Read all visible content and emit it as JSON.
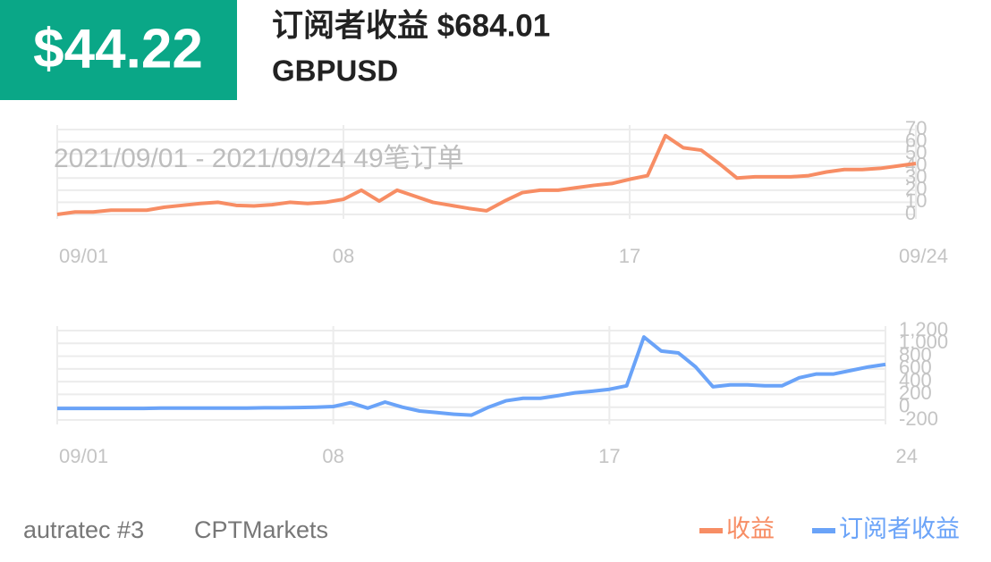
{
  "header": {
    "amount": "$44.22",
    "title": "订阅者收益 $684.01",
    "symbol": "GBPUSD"
  },
  "chart_data": [
    {
      "type": "line",
      "annotation": "2021/09/01 - 2021/09/24  49笔订单",
      "categories": [
        "09/01",
        null,
        null,
        null,
        null,
        null,
        null,
        null,
        null,
        null,
        null,
        null,
        null,
        null,
        null,
        null,
        "08",
        null,
        null,
        null,
        null,
        null,
        null,
        null,
        null,
        null,
        null,
        null,
        null,
        null,
        null,
        null,
        "17",
        null,
        null,
        null,
        null,
        null,
        null,
        null,
        null,
        null,
        null,
        null,
        null,
        null,
        null,
        null,
        "09/24"
      ],
      "series": [
        {
          "name": "收益",
          "color": "#f78d64",
          "values": [
            0,
            2,
            2,
            3.5,
            3.5,
            3.5,
            6,
            7.5,
            9,
            10,
            7.5,
            7,
            8,
            10,
            9,
            10,
            12.5,
            20,
            11,
            20,
            15,
            10,
            7.5,
            5,
            3,
            11,
            18,
            20,
            20,
            22,
            24,
            25.5,
            29,
            32,
            65,
            55,
            53,
            42,
            30,
            31,
            31,
            31,
            32,
            35,
            37,
            37,
            38,
            40,
            42
          ]
        }
      ],
      "ylim": [
        0,
        70
      ],
      "yticks": [
        0,
        10,
        20,
        30,
        40,
        50,
        60,
        70
      ],
      "grid": true
    },
    {
      "type": "line",
      "categories": [
        "09/01",
        null,
        null,
        null,
        null,
        null,
        null,
        null,
        null,
        null,
        null,
        null,
        null,
        null,
        null,
        null,
        "08",
        null,
        null,
        null,
        null,
        null,
        null,
        null,
        null,
        null,
        null,
        null,
        null,
        null,
        null,
        null,
        "17",
        null,
        null,
        null,
        null,
        null,
        null,
        null,
        null,
        null,
        null,
        null,
        null,
        null,
        null,
        null,
        "24"
      ],
      "series": [
        {
          "name": "订阅者收益",
          "color": "#6aa3f8",
          "values": [
            -20,
            -20,
            -20,
            -20,
            -20,
            -20,
            -15,
            -15,
            -15,
            -15,
            -15,
            -15,
            -10,
            -10,
            -5,
            0,
            10,
            70,
            -15,
            80,
            0,
            -60,
            -85,
            -110,
            -125,
            0,
            100,
            140,
            140,
            180,
            225,
            250,
            280,
            335,
            1100,
            880,
            850,
            630,
            320,
            350,
            350,
            335,
            335,
            460,
            520,
            520,
            575,
            630,
            670
          ]
        }
      ],
      "ylim": [
        -200,
        1200
      ],
      "yticks": [
        -200,
        0,
        200,
        400,
        600,
        800,
        {
          "value": 1000,
          "label": "1,000"
        },
        {
          "value": 1200,
          "label": "1,200"
        }
      ],
      "grid": true
    }
  ],
  "footer": {
    "account": "autratec #3",
    "broker": "CPTMarkets"
  }
}
